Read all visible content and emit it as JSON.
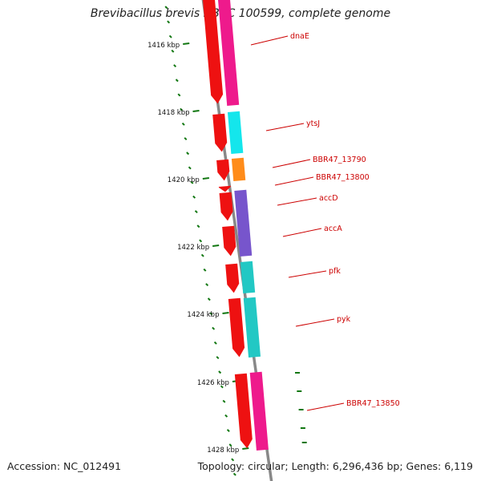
{
  "title": "Brevibacillus brevis NBRC 100599, complete genome",
  "footer": {
    "accession": "Accession: NC_012491",
    "topology": "Topology: circular; Length: 6,296,436 bp; Genes: 6,119"
  },
  "colors": {
    "cds": "#ee1111",
    "backbone": "#888888",
    "tick": "#117711",
    "label": "#cc0000",
    "gene_magenta": "#ee1a8c",
    "gene_cyan": "#14e6ec",
    "gene_orange": "#ff8c1a",
    "gene_purple": "#7755cc",
    "gene_teal": "#22c8c4"
  },
  "kbp_labels": [
    "1416 kbp",
    "1418 kbp",
    "1420 kbp",
    "1422 kbp",
    "1424 kbp",
    "1426 kbp",
    "1428 kbp"
  ],
  "genes": [
    {
      "name": "dnaE",
      "color_key": "gene_magenta"
    },
    {
      "name": "ytsJ",
      "color_key": "gene_cyan"
    },
    {
      "name": "BBR47_13790",
      "color_key": "gene_orange"
    },
    {
      "name": "BBR47_13800",
      "color_key": "cds"
    },
    {
      "name": "accD",
      "color_key": "gene_purple"
    },
    {
      "name": "accA",
      "color_key": "gene_purple"
    },
    {
      "name": "pfk",
      "color_key": "gene_teal"
    },
    {
      "name": "pyk",
      "color_key": "gene_teal"
    },
    {
      "name": "BBR47_13850",
      "color_key": "gene_magenta"
    }
  ]
}
